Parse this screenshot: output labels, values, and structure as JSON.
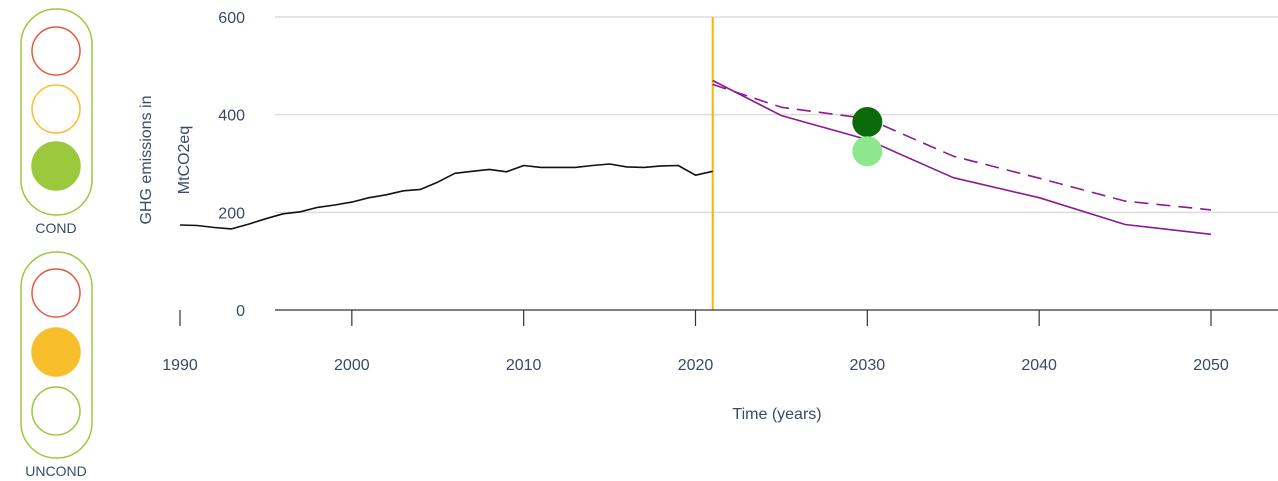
{
  "traffic_lights": [
    {
      "label": "COND",
      "active": "green",
      "colors": {
        "red": "#e8553f",
        "amber": "#f8bf2c",
        "green": "#9bc83d",
        "frame": "#9bc83d"
      }
    },
    {
      "label": "UNCOND",
      "active": "amber",
      "colors": {
        "red": "#e8553f",
        "amber": "#f8bf2c",
        "green": "#9bc83d",
        "frame": "#9bc83d"
      }
    }
  ],
  "chart_data": {
    "type": "line",
    "xlabel": "Time (years)",
    "ylabel": "GHG emissions in MtCO2eq",
    "xlim": [
      1989,
      2051
    ],
    "ylim": [
      0,
      600
    ],
    "xticks": [
      1990,
      2000,
      2010,
      2020,
      2030,
      2040,
      2050
    ],
    "yticks": [
      0,
      200,
      400,
      600
    ],
    "grid": "horizontal",
    "series": [
      {
        "style": "solid",
        "color": "#111111",
        "x": [
          1990,
          1991,
          1992,
          1993,
          1994,
          1995,
          1996,
          1997,
          1998,
          1999,
          2000,
          2001,
          2002,
          2003,
          2004,
          2005,
          2006,
          2007,
          2008,
          2009,
          2010,
          2011,
          2012,
          2013,
          2014,
          2015,
          2016,
          2017,
          2018,
          2019,
          2020,
          2021
        ],
        "y": [
          174,
          173,
          169,
          166,
          176,
          187,
          197,
          201,
          210,
          215,
          221,
          230,
          236,
          244,
          247,
          262,
          280,
          284,
          288,
          283,
          296,
          292,
          292,
          292,
          296,
          299,
          293,
          292,
          295,
          296,
          276,
          284
        ]
      },
      {
        "style": "solid",
        "color": "#8b1a94",
        "x": [
          2021,
          2025,
          2030,
          2035,
          2040,
          2045,
          2050
        ],
        "y": [
          470,
          398,
          349,
          271,
          230,
          175,
          155
        ]
      },
      {
        "style": "dashed",
        "color": "#8b1a94",
        "x": [
          2021,
          2025,
          2030,
          2035,
          2040,
          2045,
          2050
        ],
        "y": [
          462,
          415,
          392,
          315,
          270,
          223,
          205
        ]
      }
    ],
    "points": [
      {
        "x": 2030,
        "y": 385,
        "color": "#0b6b0b"
      },
      {
        "x": 2030,
        "y": 325,
        "color": "#8de88d"
      }
    ],
    "reference_line": {
      "x": 2021,
      "color": "#f5b800"
    },
    "colors": {
      "grid": "#dddddd",
      "axis": "#333333"
    }
  }
}
